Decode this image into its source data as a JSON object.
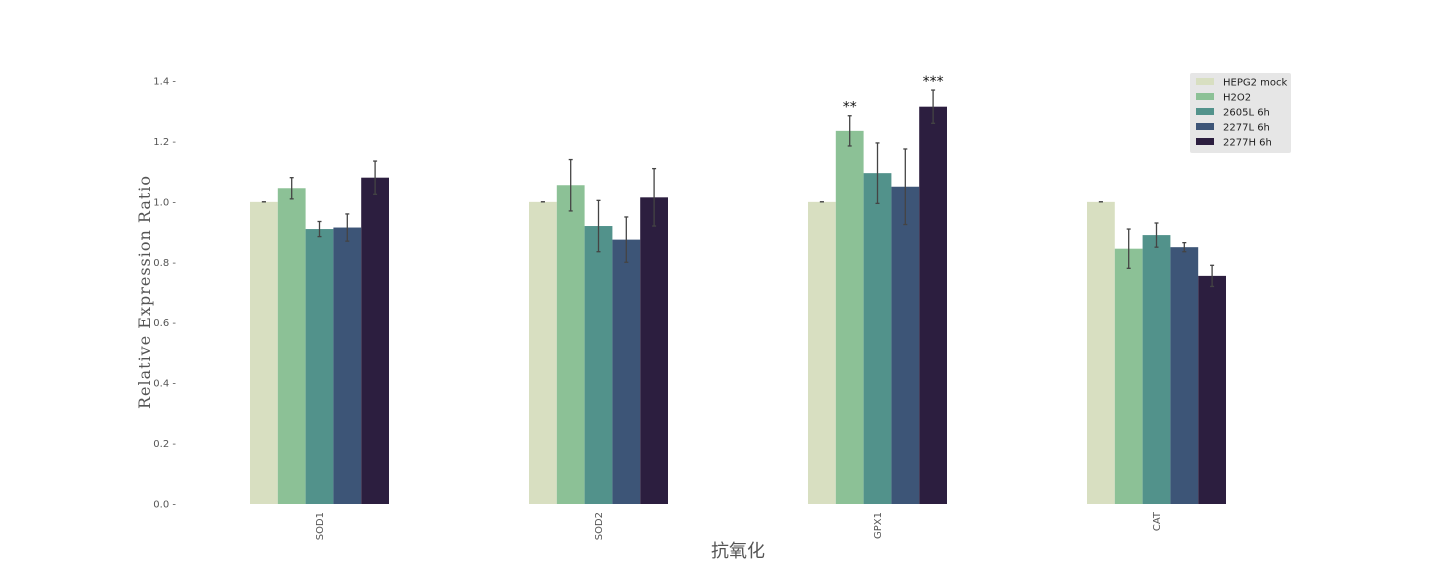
{
  "chart_data": {
    "type": "bar",
    "categories": [
      "SOD1",
      "SOD2",
      "GPX1",
      "CAT"
    ],
    "series": [
      {
        "name": "HEPG2 mock",
        "color": "#d8dfc1",
        "values": [
          1.0,
          1.0,
          1.0,
          1.0
        ],
        "errors": [
          0.0,
          0.0,
          0.0,
          0.0
        ]
      },
      {
        "name": "H2O2",
        "color": "#8cc196",
        "values": [
          1.045,
          1.055,
          1.235,
          0.845
        ],
        "errors": [
          0.035,
          0.085,
          0.05,
          0.065
        ]
      },
      {
        "name": "2605L 6h",
        "color": "#52928b",
        "values": [
          0.91,
          0.92,
          1.095,
          0.89
        ],
        "errors": [
          0.025,
          0.085,
          0.1,
          0.04
        ]
      },
      {
        "name": "2277L 6h",
        "color": "#3d5577",
        "values": [
          0.915,
          0.875,
          1.05,
          0.85
        ],
        "errors": [
          0.045,
          0.075,
          0.125,
          0.015
        ]
      },
      {
        "name": "2277H 6h",
        "color": "#2c1e3f",
        "values": [
          1.08,
          1.015,
          1.315,
          0.755
        ],
        "errors": [
          0.055,
          0.095,
          0.055,
          0.035
        ]
      }
    ],
    "significance": [
      {
        "category": "GPX1",
        "series": "H2O2",
        "label": "**"
      },
      {
        "category": "GPX1",
        "series": "2277H 6h",
        "label": "***"
      }
    ],
    "ylabel": "Relative Expression Ratio",
    "xlabel": "抗氧化",
    "ylim": [
      0,
      1.4
    ],
    "yticks": [
      "0.0",
      "0.2",
      "0.4",
      "0.6",
      "0.8",
      "1.0",
      "1.2",
      "1.4"
    ],
    "grid": false,
    "legend_position": "top-right"
  }
}
